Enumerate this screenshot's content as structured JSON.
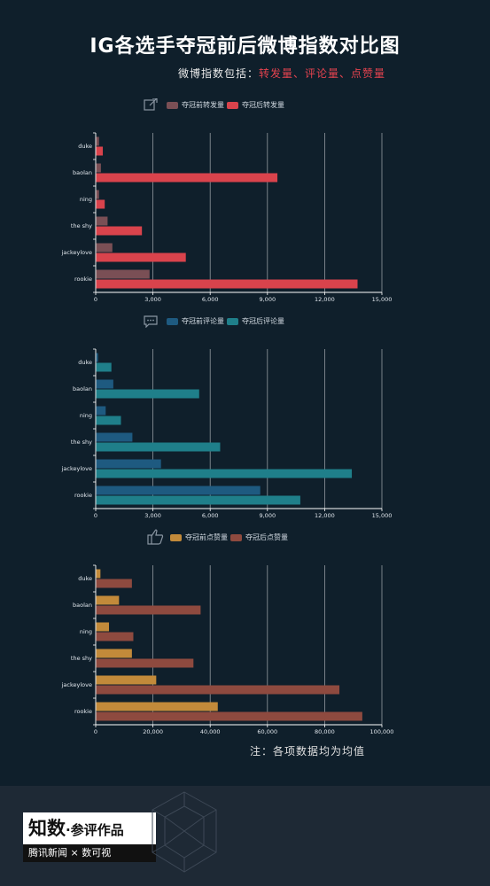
{
  "title": "IG各选手夺冠前后微博指数对比图",
  "subtitle": {
    "prefix": "微博指数包括：",
    "highlight": "转发量、评论量、点赞量"
  },
  "note": "注：各项数据均为均值",
  "footer": {
    "brand_big": "知数",
    "brand_rest": "·参评作品",
    "partner": "腾讯新闻 × 数可视"
  },
  "colors": {
    "background": "#0f1f2b",
    "footer_bg": "#1e2935"
  },
  "chart_data": [
    {
      "type": "bar",
      "orientation": "horizontal",
      "icon": "share-edit-icon",
      "categories": [
        "duke",
        "baolan",
        "ning",
        "the shy",
        "jackeylove",
        "rookie"
      ],
      "series": [
        {
          "name": "夺冠前转发量",
          "color": "#7a4f55",
          "values": [
            150,
            250,
            150,
            600,
            850,
            2800
          ]
        },
        {
          "name": "夺冠后转发量",
          "color": "#d9434c",
          "values": [
            350,
            9500,
            450,
            2400,
            4700,
            13700
          ]
        }
      ],
      "xlim": [
        0,
        15000
      ],
      "xticks": [
        "0",
        "3,000",
        "6,000",
        "9,000",
        "12,000",
        "15,000"
      ],
      "xtick_values": [
        0,
        3000,
        6000,
        9000,
        12000,
        15000
      ]
    },
    {
      "type": "bar",
      "orientation": "horizontal",
      "icon": "comment-icon",
      "categories": [
        "duke",
        "baolan",
        "ning",
        "the shy",
        "jackeylove",
        "rookie"
      ],
      "series": [
        {
          "name": "夺冠前评论量",
          "color": "#1e5a80",
          "values": [
            100,
            900,
            500,
            1900,
            3400,
            8600
          ]
        },
        {
          "name": "夺冠后评论量",
          "color": "#1f7f8a",
          "values": [
            800,
            5400,
            1300,
            6500,
            13400,
            10700
          ]
        }
      ],
      "xlim": [
        0,
        15000
      ],
      "xticks": [
        "0",
        "3,000",
        "6,000",
        "9,000",
        "12,000",
        "15,000"
      ],
      "xtick_values": [
        0,
        3000,
        6000,
        9000,
        12000,
        15000
      ]
    },
    {
      "type": "bar",
      "orientation": "horizontal",
      "icon": "thumbs-up-icon",
      "categories": [
        "duke",
        "baolan",
        "ning",
        "the shy",
        "jackeylove",
        "rookie"
      ],
      "series": [
        {
          "name": "夺冠前点赞量",
          "color": "#c28a3a",
          "values": [
            1500,
            8000,
            4500,
            12500,
            21000,
            42500
          ]
        },
        {
          "name": "夺冠后点赞量",
          "color": "#8e4a3f",
          "values": [
            12500,
            36500,
            13000,
            34000,
            85000,
            93000
          ]
        }
      ],
      "xlim": [
        0,
        100000
      ],
      "xticks": [
        "0",
        "20,000",
        "40,000",
        "60,000",
        "80,000",
        "100,000"
      ],
      "xtick_values": [
        0,
        20000,
        40000,
        60000,
        80000,
        100000
      ]
    }
  ]
}
